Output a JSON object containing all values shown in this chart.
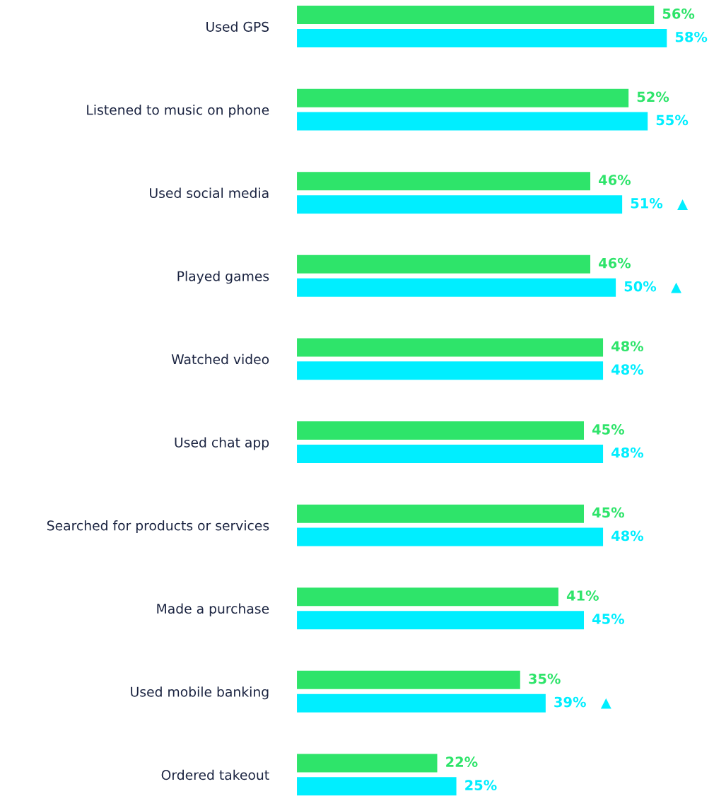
{
  "chart_data": {
    "type": "bar",
    "orientation": "horizontal",
    "categories": [
      "Used GPS",
      "Listened to music on phone",
      "Used social media",
      "Played games",
      "Watched video",
      "Used chat app",
      "Searched for products or services",
      "Made a purchase",
      "Used mobile banking",
      "Ordered takeout"
    ],
    "series": [
      {
        "color": "#2ee46a",
        "values": [
          56,
          52,
          46,
          46,
          48,
          45,
          45,
          41,
          35,
          22
        ],
        "value_labels": [
          "56%",
          "52%",
          "46%",
          "46%",
          "48%",
          "45%",
          "45%",
          "41%",
          "35%",
          "22%"
        ]
      },
      {
        "color": "#00eeff",
        "values": [
          58,
          55,
          51,
          50,
          48,
          48,
          48,
          45,
          39,
          25
        ],
        "value_labels": [
          "58%",
          "55%",
          "51%   ▲",
          "50%   ▲",
          "48%",
          "48%",
          "48%",
          "45%",
          "39%   ▲",
          "25%"
        ]
      }
    ],
    "grid": false
  }
}
